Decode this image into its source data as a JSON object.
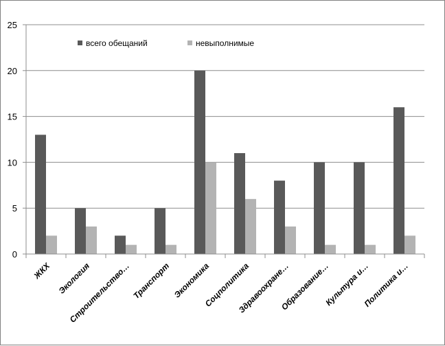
{
  "chart_data": {
    "type": "bar",
    "title": "",
    "xlabel": "",
    "ylabel": "",
    "ylim": [
      0,
      25
    ],
    "yticks": [
      0,
      5,
      10,
      15,
      20,
      25
    ],
    "grid": true,
    "legend": "top-left",
    "categories": [
      "ЖКХ",
      "Экология",
      "Строительство…",
      "Транспорт",
      "Экономика",
      "Соцполитика",
      "Здравоохране…",
      "Образование…",
      "Культура и…",
      "Политика и…"
    ],
    "series": [
      {
        "name": "всего обещаний",
        "color": "#595959",
        "values": [
          13,
          5,
          2,
          5,
          20,
          11,
          8,
          10,
          10,
          16
        ]
      },
      {
        "name": "невыполнимые",
        "color": "#b3b3b3",
        "values": [
          2,
          3,
          1,
          1,
          10,
          6,
          3,
          1,
          1,
          2
        ]
      }
    ]
  }
}
